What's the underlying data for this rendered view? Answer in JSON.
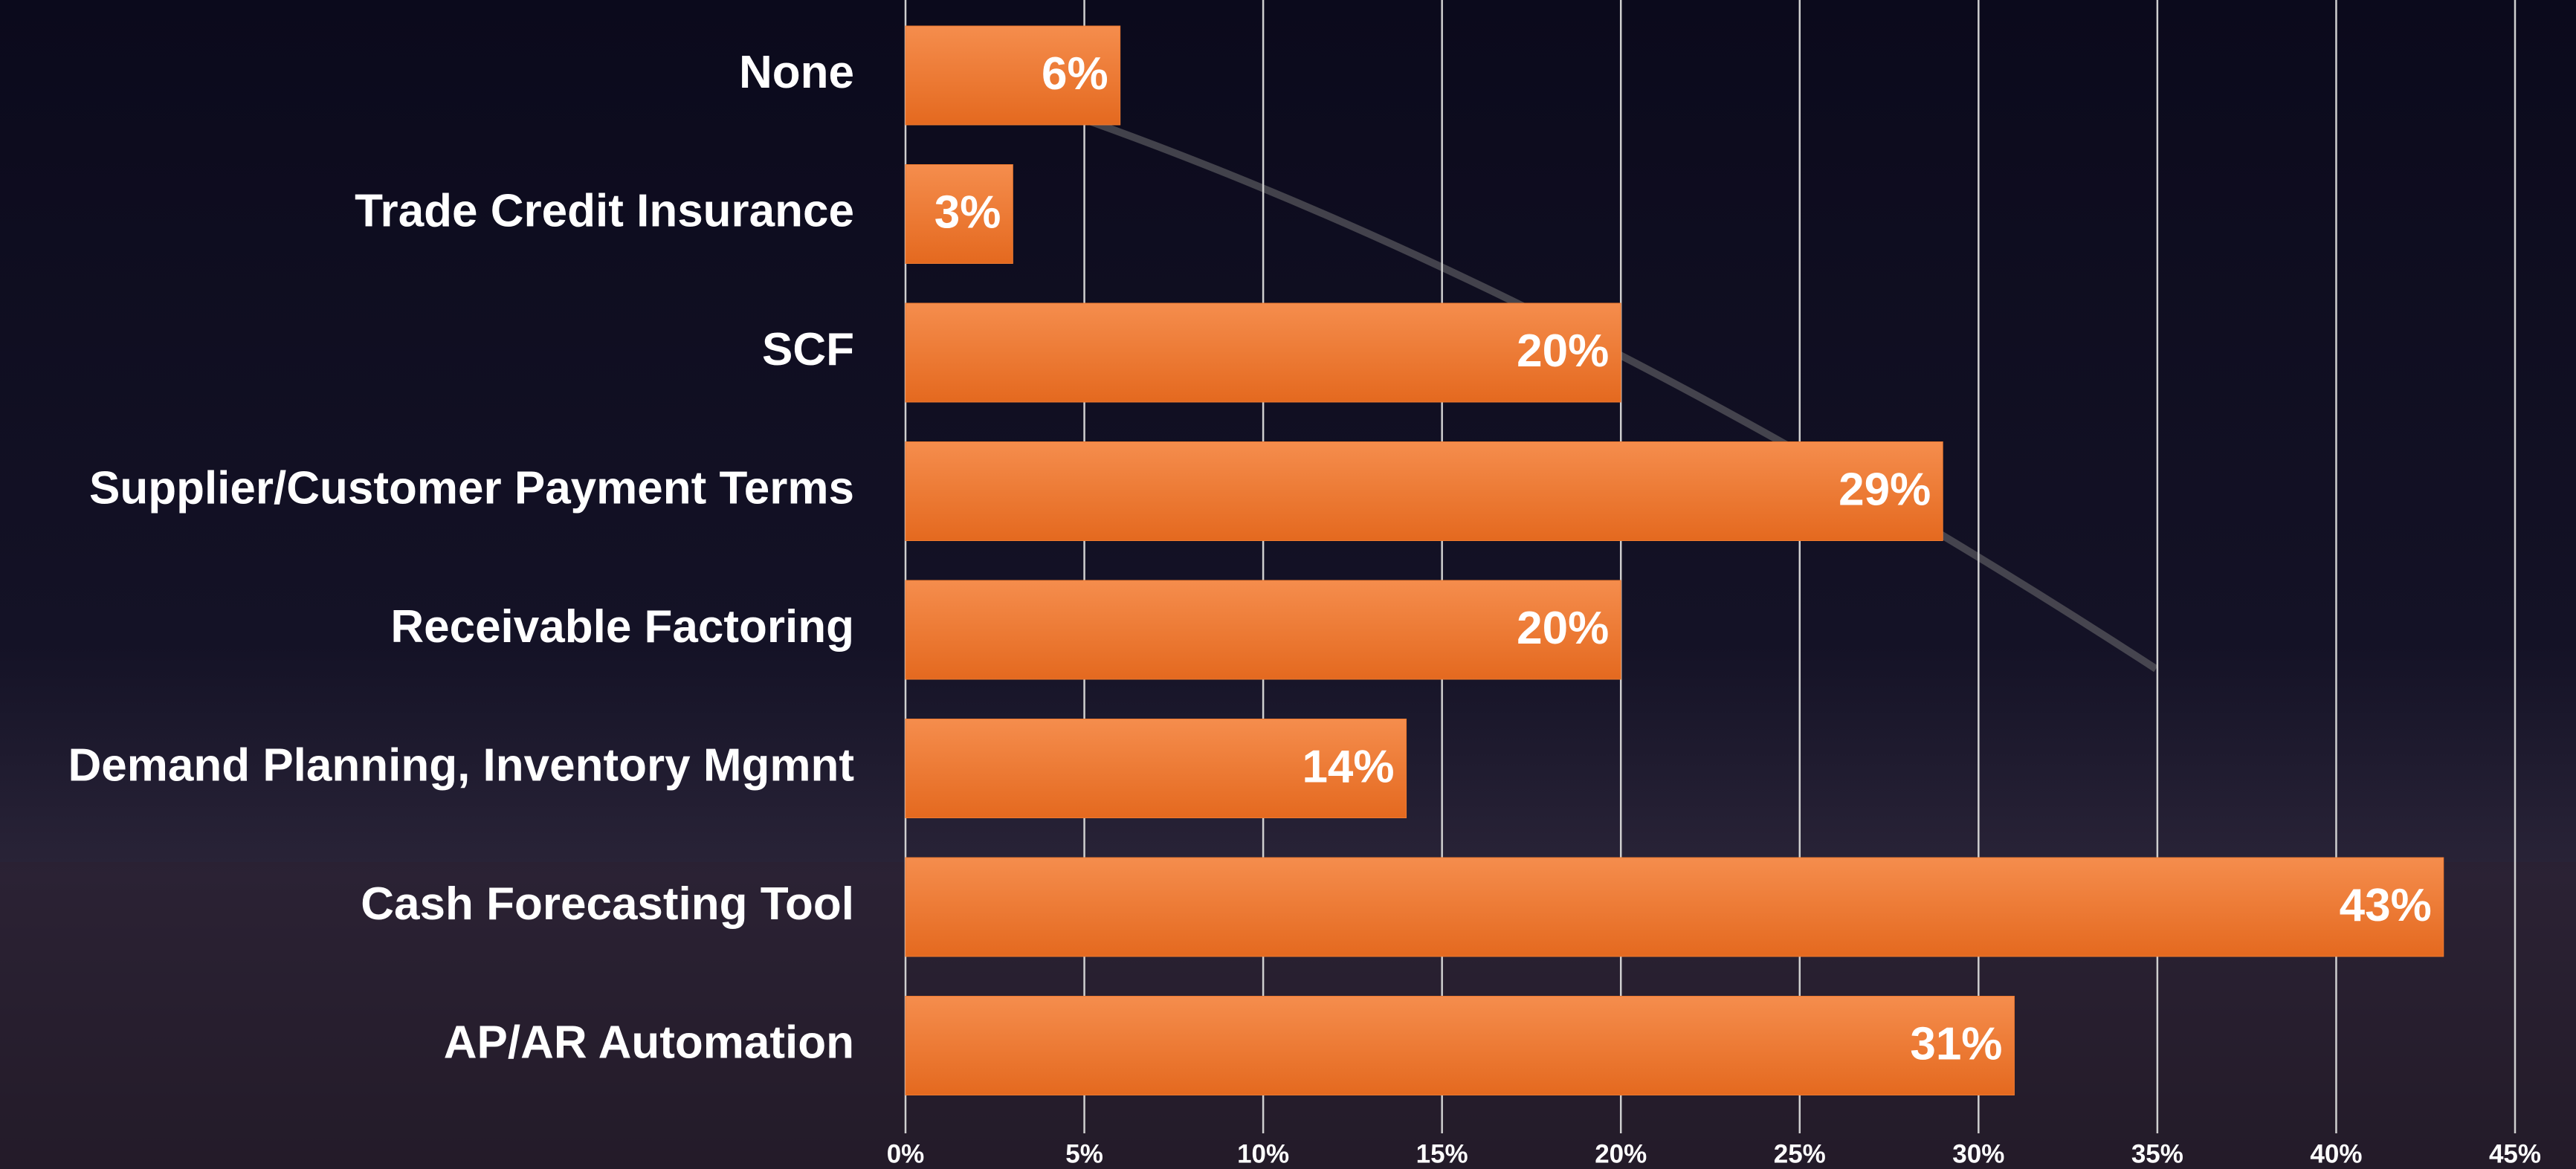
{
  "chart_data": {
    "type": "barh",
    "categories": [
      "None",
      "Trade Credit Insurance",
      "SCF",
      "Supplier/Customer Payment Terms",
      "Receivable Factoring",
      "Demand Planning, Inventory Mgmnt",
      "Cash Forecasting Tool",
      "AP/AR Automation"
    ],
    "values": [
      6,
      3,
      20,
      29,
      20,
      14,
      43,
      31
    ],
    "value_labels": [
      "6%",
      "3%",
      "20%",
      "29%",
      "20%",
      "14%",
      "43%",
      "31%"
    ],
    "color": "#ee7a30",
    "xlim": [
      0,
      45
    ],
    "xticks": [
      {
        "value": 0,
        "label": "0%"
      },
      {
        "value": 5,
        "label": "5%"
      },
      {
        "value": 10,
        "label": "10%"
      },
      {
        "value": 15,
        "label": "15%"
      },
      {
        "value": 20,
        "label": "20%"
      },
      {
        "value": 25,
        "label": "25%"
      },
      {
        "value": 30,
        "label": "30%"
      },
      {
        "value": 35,
        "label": "35%"
      },
      {
        "value": 40,
        "label": "40%"
      },
      {
        "value": 45,
        "label": "45%"
      }
    ],
    "grid": true
  }
}
